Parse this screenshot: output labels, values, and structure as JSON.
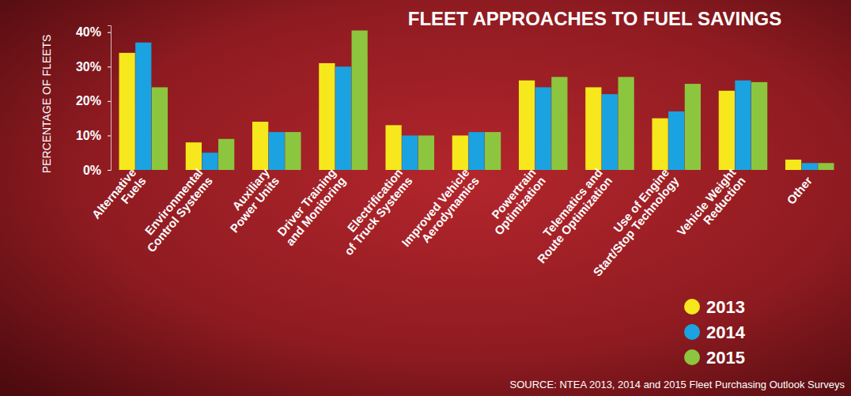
{
  "chart_data": {
    "type": "bar",
    "title": "FLEET APPROACHES TO FUEL SAVINGS",
    "y_label": "PERCENTAGE OF FLEETS",
    "source": "SOURCE: NTEA 2013, 2014 and 2015 Fleet Purchasing Outlook Surveys",
    "categories": [
      "Alternative Fuels",
      "Environmental Control Systems",
      "Auxiliary Power Units",
      "Driver Training and Monitoring",
      "Electrification of Truck Systems",
      "Improved Vehicle Aerodynamics",
      "Powertrain Optimization",
      "Telematics and Route Optimization",
      "Use of Engine Start/Stop Technology",
      "Vehicle Weight Reduction",
      "Other"
    ],
    "series": [
      {
        "name": "2013",
        "color": "#f6e81c",
        "values": [
          34,
          8,
          14,
          31,
          13,
          10,
          26,
          24,
          15,
          23,
          3
        ]
      },
      {
        "name": "2014",
        "color": "#1aa3e0",
        "values": [
          37,
          5,
          11,
          30,
          10,
          11,
          24,
          22,
          17,
          26,
          2
        ]
      },
      {
        "name": "2015",
        "color": "#8cc63f",
        "values": [
          24,
          9,
          11,
          40.5,
          10,
          11,
          27,
          27,
          25,
          25.5,
          2
        ]
      }
    ],
    "ylim": [
      0,
      42
    ],
    "yticks": [
      {
        "value": 0,
        "label": "0%"
      },
      {
        "value": 10,
        "label": "10%"
      },
      {
        "value": 20,
        "label": "20%"
      },
      {
        "value": 30,
        "label": "30%"
      },
      {
        "value": 40,
        "label": "40%"
      }
    ],
    "grid": false,
    "legend": "bottom-right"
  }
}
